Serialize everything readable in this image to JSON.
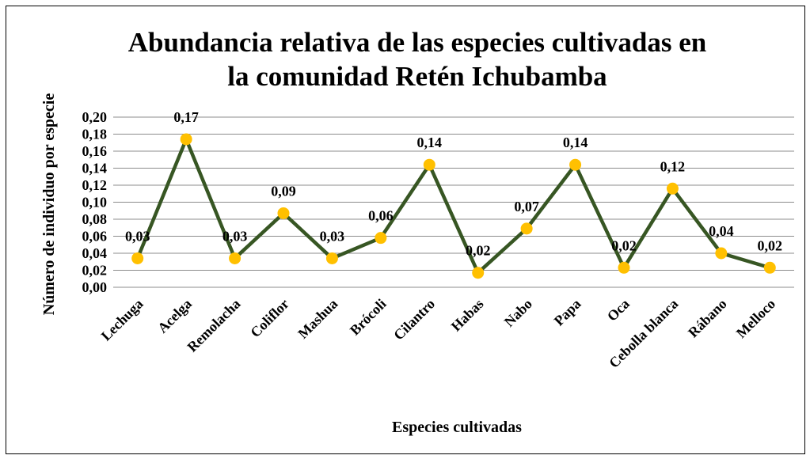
{
  "chart_data": {
    "type": "line",
    "title": [
      "Abundancia relativa de las especies cultivadas en",
      "la comunidad Retén Ichubamba"
    ],
    "x_label": "Especies cultivadas",
    "y_label": "Número de individuo por especie",
    "categories": [
      "Lechuga",
      "Acelga",
      "Remolacha",
      "Coliflor",
      "Mashua",
      "Brócoli",
      "Cilantro",
      "Habas",
      "Nabo",
      "Papa",
      "Oca",
      "Cebolla blanca",
      "Rábano",
      "Melloco"
    ],
    "series": [
      {
        "name": "Abundancia relativa",
        "color": "#375623",
        "marker_color": "#ffc000",
        "values": [
          0.034,
          0.174,
          0.034,
          0.087,
          0.034,
          0.058,
          0.144,
          0.017,
          0.069,
          0.144,
          0.023,
          0.116,
          0.04,
          0.023
        ],
        "value_labels": [
          "0,03",
          "0,17",
          "0,03",
          "0,09",
          "0,03",
          "0,06",
          "0,14",
          "0,02",
          "0,07",
          "0,14",
          "0,02",
          "0,12",
          "0,04",
          "0,02"
        ]
      }
    ],
    "ylim": [
      0,
      0.2
    ],
    "yticks": [
      {
        "value": 0,
        "label": "0,00"
      },
      {
        "value": 0.02,
        "label": "0,02"
      },
      {
        "value": 0.04,
        "label": "0,04"
      },
      {
        "value": 0.06,
        "label": "0,06"
      },
      {
        "value": 0.08,
        "label": "0,08"
      },
      {
        "value": 0.1,
        "label": "0,10"
      },
      {
        "value": 0.12,
        "label": "0,12"
      },
      {
        "value": 0.14,
        "label": "0,14"
      },
      {
        "value": 0.16,
        "label": "0,16"
      },
      {
        "value": 0.18,
        "label": "0,18"
      },
      {
        "value": 0.2,
        "label": "0,20"
      }
    ],
    "grid": true
  }
}
